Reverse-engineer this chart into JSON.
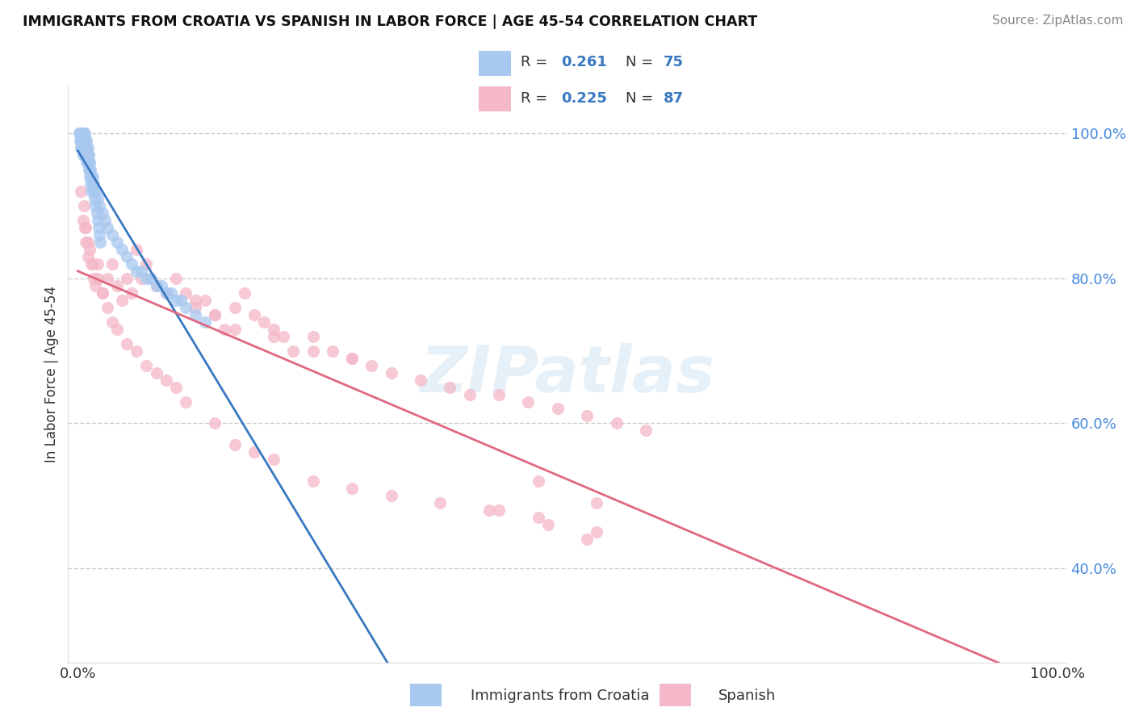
{
  "title": "IMMIGRANTS FROM CROATIA VS SPANISH IN LABOR FORCE | AGE 45-54 CORRELATION CHART",
  "source": "Source: ZipAtlas.com",
  "ylabel": "In Labor Force | Age 45-54",
  "croatia_R": 0.261,
  "croatia_N": 75,
  "spanish_R": 0.225,
  "spanish_N": 87,
  "croatia_color": "#a8c8f0",
  "spanish_color": "#f4b8c8",
  "croatia_line_color": "#3878c0",
  "spanish_line_color": "#e06880",
  "r_n_color": "#3878c0",
  "text_color": "#333333",
  "source_color": "#888888",
  "background_color": "#ffffff",
  "grid_color": "#cccccc",
  "watermark": "ZIPatlas",
  "ytick_color": "#4488dd",
  "xlim": [
    -0.01,
    1.01
  ],
  "ylim": [
    0.27,
    1.065
  ],
  "yticks": [
    0.4,
    0.6,
    0.8,
    1.0
  ],
  "ytick_labels": [
    "40.0%",
    "60.0%",
    "80.0%",
    "100.0%"
  ],
  "scatter_size": 120,
  "scatter_alpha": 0.75,
  "croatia_x": [
    0.001,
    0.002,
    0.002,
    0.003,
    0.003,
    0.003,
    0.004,
    0.004,
    0.004,
    0.005,
    0.005,
    0.005,
    0.005,
    0.006,
    0.006,
    0.006,
    0.007,
    0.007,
    0.007,
    0.007,
    0.008,
    0.008,
    0.008,
    0.009,
    0.009,
    0.009,
    0.01,
    0.01,
    0.011,
    0.011,
    0.012,
    0.012,
    0.013,
    0.014,
    0.015,
    0.016,
    0.018,
    0.02,
    0.022,
    0.025,
    0.028,
    0.03,
    0.035,
    0.04,
    0.045,
    0.05,
    0.06,
    0.07,
    0.08,
    0.09,
    0.1,
    0.11,
    0.12,
    0.13,
    0.015,
    0.016,
    0.017,
    0.018,
    0.019,
    0.02,
    0.021,
    0.022,
    0.023,
    0.009,
    0.01,
    0.011,
    0.012,
    0.013,
    0.014,
    0.055,
    0.065,
    0.075,
    0.085,
    0.095,
    0.105
  ],
  "croatia_y": [
    1.0,
    1.0,
    0.99,
    1.0,
    0.99,
    0.98,
    1.0,
    0.99,
    0.98,
    1.0,
    0.99,
    0.98,
    0.97,
    1.0,
    0.99,
    0.98,
    1.0,
    0.99,
    0.98,
    0.97,
    0.99,
    0.98,
    0.97,
    0.99,
    0.98,
    0.96,
    0.98,
    0.97,
    0.97,
    0.96,
    0.96,
    0.95,
    0.95,
    0.94,
    0.94,
    0.93,
    0.92,
    0.91,
    0.9,
    0.89,
    0.88,
    0.87,
    0.86,
    0.85,
    0.84,
    0.83,
    0.81,
    0.8,
    0.79,
    0.78,
    0.77,
    0.76,
    0.75,
    0.74,
    0.93,
    0.92,
    0.91,
    0.9,
    0.89,
    0.88,
    0.87,
    0.86,
    0.85,
    0.97,
    0.96,
    0.95,
    0.94,
    0.93,
    0.92,
    0.82,
    0.81,
    0.8,
    0.79,
    0.78,
    0.77
  ],
  "spanish_x": [
    0.003,
    0.005,
    0.007,
    0.008,
    0.01,
    0.012,
    0.014,
    0.016,
    0.018,
    0.02,
    0.025,
    0.03,
    0.035,
    0.04,
    0.045,
    0.05,
    0.055,
    0.06,
    0.065,
    0.07,
    0.08,
    0.09,
    0.1,
    0.11,
    0.12,
    0.13,
    0.14,
    0.15,
    0.16,
    0.17,
    0.18,
    0.19,
    0.2,
    0.21,
    0.22,
    0.24,
    0.26,
    0.28,
    0.3,
    0.32,
    0.35,
    0.38,
    0.4,
    0.43,
    0.46,
    0.49,
    0.52,
    0.55,
    0.58,
    0.12,
    0.14,
    0.16,
    0.2,
    0.24,
    0.28,
    0.006,
    0.008,
    0.01,
    0.015,
    0.02,
    0.025,
    0.03,
    0.035,
    0.04,
    0.05,
    0.06,
    0.07,
    0.08,
    0.09,
    0.1,
    0.11,
    0.14,
    0.16,
    0.18,
    0.2,
    0.24,
    0.28,
    0.32,
    0.37,
    0.42,
    0.47,
    0.53,
    0.47,
    0.53,
    0.43,
    0.48,
    0.52
  ],
  "spanish_y": [
    0.92,
    0.88,
    0.87,
    0.85,
    0.83,
    0.84,
    0.82,
    0.8,
    0.79,
    0.82,
    0.78,
    0.8,
    0.82,
    0.79,
    0.77,
    0.8,
    0.78,
    0.84,
    0.8,
    0.82,
    0.79,
    0.78,
    0.8,
    0.78,
    0.76,
    0.77,
    0.75,
    0.73,
    0.76,
    0.78,
    0.75,
    0.74,
    0.73,
    0.72,
    0.7,
    0.72,
    0.7,
    0.69,
    0.68,
    0.67,
    0.66,
    0.65,
    0.64,
    0.64,
    0.63,
    0.62,
    0.61,
    0.6,
    0.59,
    0.77,
    0.75,
    0.73,
    0.72,
    0.7,
    0.69,
    0.9,
    0.87,
    0.85,
    0.82,
    0.8,
    0.78,
    0.76,
    0.74,
    0.73,
    0.71,
    0.7,
    0.68,
    0.67,
    0.66,
    0.65,
    0.63,
    0.6,
    0.57,
    0.56,
    0.55,
    0.52,
    0.51,
    0.5,
    0.49,
    0.48,
    0.47,
    0.45,
    0.52,
    0.49,
    0.48,
    0.46,
    0.44
  ]
}
